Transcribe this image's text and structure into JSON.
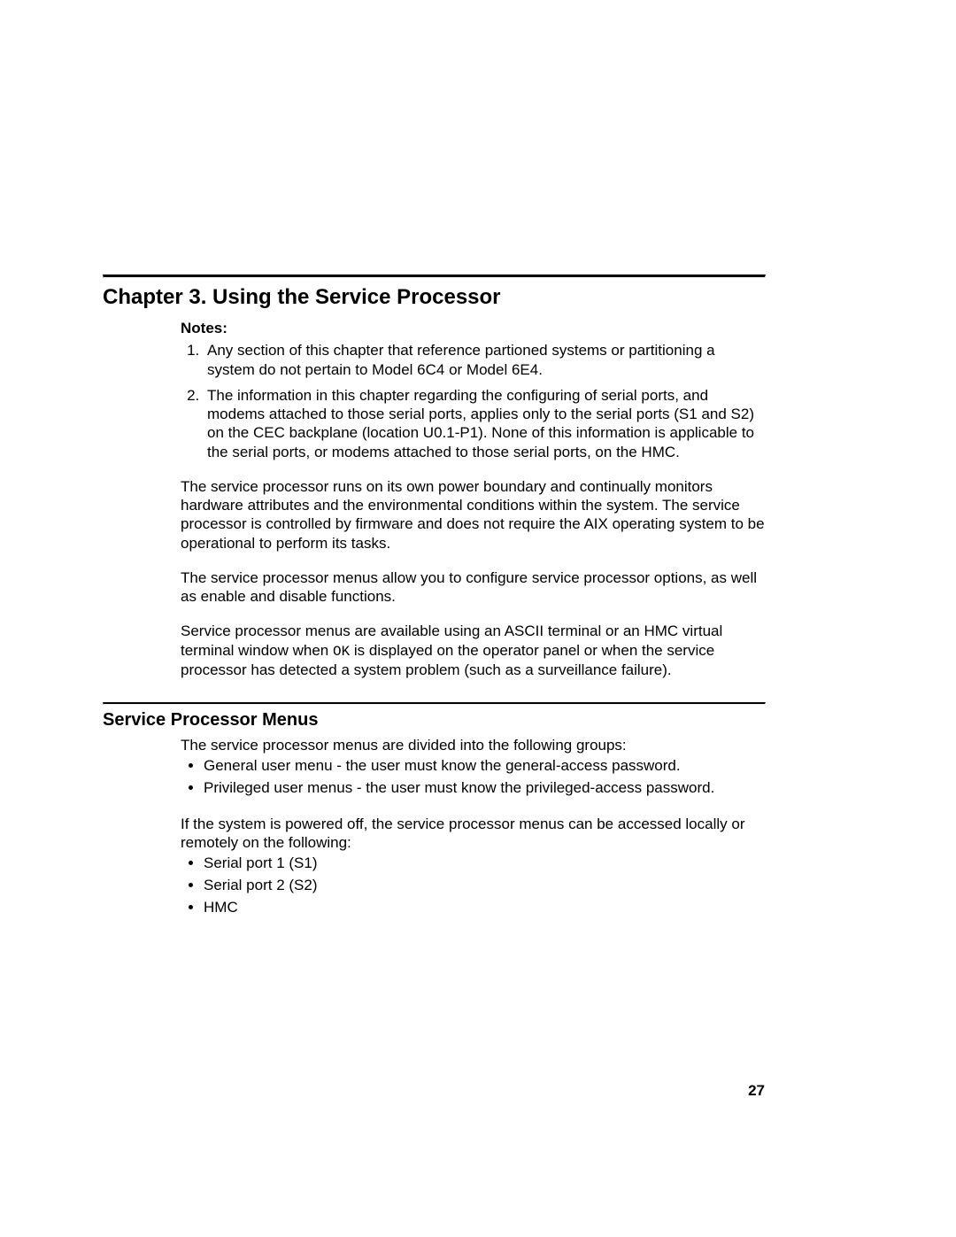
{
  "page": {
    "number": "27"
  },
  "chapter": {
    "title": "Chapter 3. Using the Service Processor"
  },
  "notes": {
    "label": "Notes:",
    "items": [
      "Any section of this chapter that reference partioned systems or partitioning a system do not pertain to Model 6C4 or Model 6E4.",
      "The information in this chapter regarding the configuring of serial ports, and modems attached to those serial ports, applies only to the serial ports (S1 and S2) on the CEC backplane (location U0.1-P1). None of this information is applicable to the serial ports, or modems attached to those serial ports, on the HMC."
    ]
  },
  "paragraphs": {
    "p1": "The service processor runs on its own power boundary and continually monitors hardware attributes and the environmental conditions within the system. The service processor is controlled by firmware and does not require the AIX operating system to be operational to perform its tasks.",
    "p2": "The service processor menus allow you to configure service processor options, as well as enable and disable functions.",
    "p3_part1": "Service processor menus are available using an ASCII terminal or an HMC virtual terminal window when ",
    "p3_code": "OK",
    "p3_part2": " is displayed on the operator panel or when the service processor has detected a system problem (such as a surveillance failure)."
  },
  "section": {
    "title": "Service Processor Menus",
    "intro": "The service processor menus are divided into the following groups:",
    "group_bullets": [
      "General user menu - the user must know the general-access password.",
      "Privileged user menus - the user must know the privileged-access password."
    ],
    "followup": "If the system is powered off, the service processor menus can be accessed locally or remotely on the following:",
    "access_bullets": [
      "Serial port 1 (S1)",
      "Serial port 2 (S2)",
      "HMC"
    ]
  }
}
